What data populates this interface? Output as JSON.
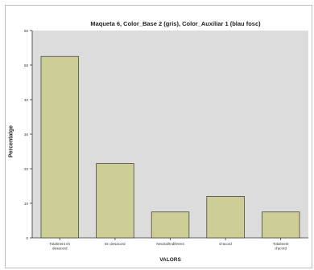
{
  "chart_data": {
    "type": "bar",
    "title": "Maqueta 6, Color_Base 2 (gris), Color_Auxiliar 1 (blau fosc)",
    "xlabel": "VALORS",
    "ylabel": "Percentatge",
    "categories": [
      "Totalment en desacord",
      "En desacord",
      "Neutral/Indiferent",
      "D'acord",
      "Totalment d'acord"
    ],
    "values": [
      52.5,
      21.5,
      7.5,
      12.0,
      7.5
    ],
    "ylim": [
      0,
      60
    ],
    "yticks": [
      "0",
      "10",
      "20",
      "30",
      "40",
      "50",
      "60"
    ],
    "grid": false,
    "legend": "none",
    "colors": {
      "plot_background": "#dcdcdc",
      "bar_fill": "#cdcd96",
      "bar_stroke": "#4a4a3a",
      "axis": "#333333"
    }
  }
}
